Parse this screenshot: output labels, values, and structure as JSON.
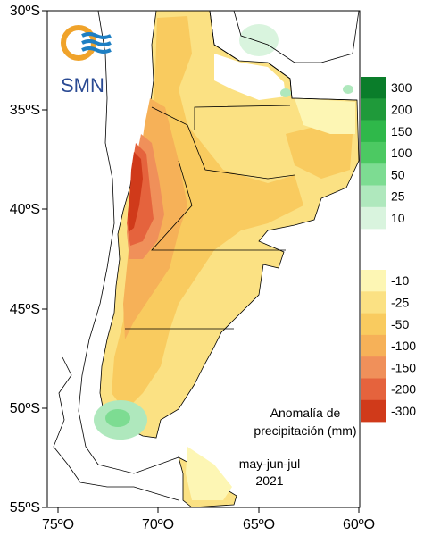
{
  "map": {
    "lat_ticks": [
      "30ºS",
      "35ºS",
      "40ºS",
      "45ºS",
      "50ºS",
      "55ºS"
    ],
    "lon_ticks": [
      "75ºO",
      "70ºO",
      "65ºO",
      "60ºO"
    ]
  },
  "logo": {
    "text": "SMN"
  },
  "annotation": {
    "line1": "Anomalía de",
    "line2": "precipitación (mm)",
    "period": "may-jun-jul",
    "year": "2021"
  },
  "legend": {
    "positive": [
      {
        "label": "300",
        "color": "#0a7d2a"
      },
      {
        "label": "200",
        "color": "#1f9a3a"
      },
      {
        "label": "150",
        "color": "#2fb84a"
      },
      {
        "label": "100",
        "color": "#4cc962"
      },
      {
        "label": "50",
        "color": "#7ddc92"
      },
      {
        "label": "25",
        "color": "#afe8bd"
      },
      {
        "label": "10",
        "color": "#d9f4de"
      }
    ],
    "negative": [
      {
        "label": "-10",
        "color": "#fdf6b4"
      },
      {
        "label": "-25",
        "color": "#fbe183"
      },
      {
        "label": "-50",
        "color": "#f9cb5f"
      },
      {
        "label": "-100",
        "color": "#f6b158"
      },
      {
        "label": "-150",
        "color": "#f0905a"
      },
      {
        "label": "-200",
        "color": "#e5633d"
      },
      {
        "label": "-300",
        "color": "#d03a1a"
      }
    ]
  }
}
